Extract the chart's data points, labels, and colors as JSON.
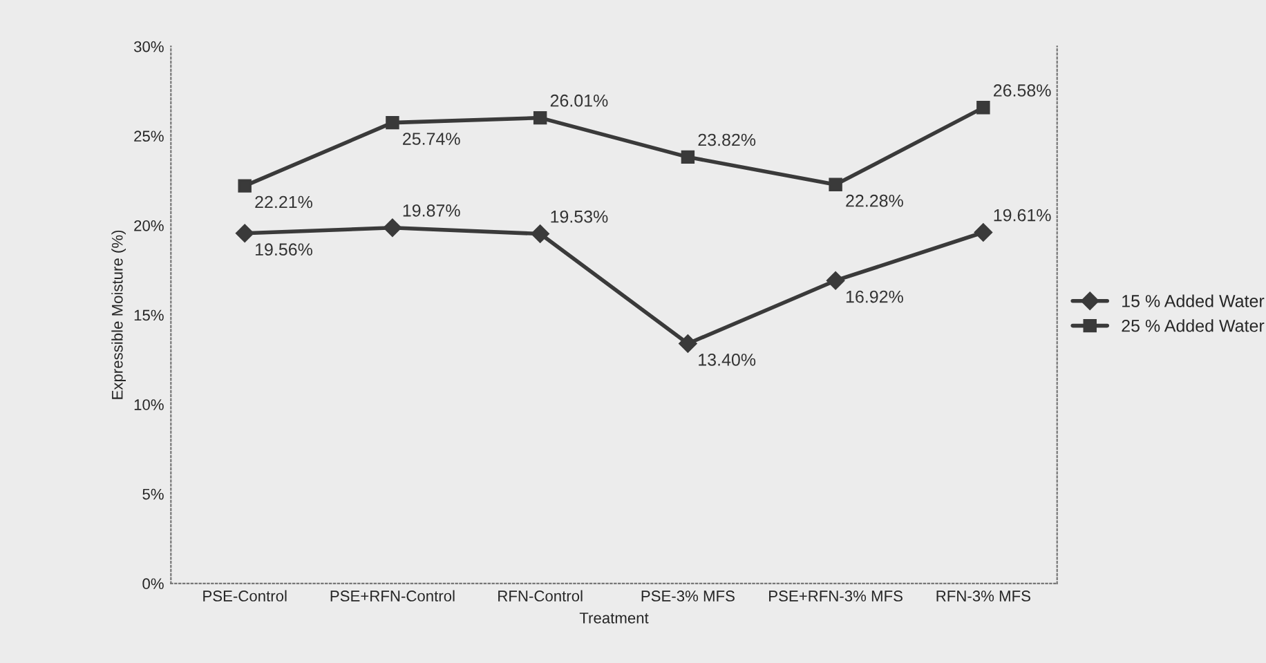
{
  "chart_data": {
    "type": "line",
    "xlabel": "Treatment",
    "ylabel": "Expressible Moisture (%)",
    "categories": [
      "PSE-Control",
      "PSE+RFN-Control",
      "RFN-Control",
      "PSE-3% MFS",
      "PSE+RFN-3% MFS",
      "RFN-3% MFS"
    ],
    "series": [
      {
        "name": "15 % Added Water",
        "color": "#3a3a3a",
        "marker": "diamond",
        "values": [
          19.56,
          19.87,
          19.53,
          13.4,
          16.92,
          19.61
        ],
        "value_labels": [
          "19.56%",
          "19.87%",
          "19.53%",
          "13.40%",
          "16.92%",
          "19.61%"
        ]
      },
      {
        "name": "25 % Added Water",
        "color": "#3a3a3a",
        "marker": "square",
        "values": [
          22.21,
          25.74,
          26.01,
          23.82,
          22.28,
          26.58
        ],
        "value_labels": [
          "22.21%",
          "25.74%",
          "26.01%",
          "23.82%",
          "22.28%",
          "26.58%"
        ]
      }
    ],
    "ylim": [
      0,
      30
    ],
    "yticks": [
      {
        "value": 0,
        "label": "0%"
      },
      {
        "value": 5,
        "label": "5%"
      },
      {
        "value": 10,
        "label": "10%"
      },
      {
        "value": 15,
        "label": "15%"
      },
      {
        "value": 20,
        "label": "20%"
      },
      {
        "value": 25,
        "label": "25%"
      },
      {
        "value": 30,
        "label": "30%"
      }
    ],
    "grid": false,
    "legend": "right",
    "line_style": "solid"
  }
}
